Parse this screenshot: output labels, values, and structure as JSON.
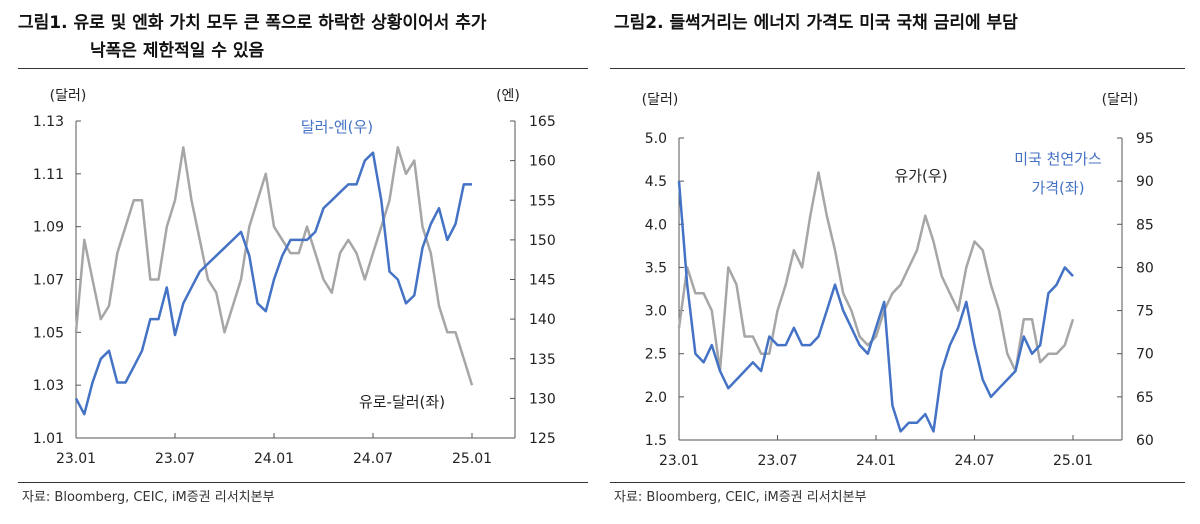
{
  "figure1": {
    "title_line1": "그림1.  유로 및 엔화 가치 모두 큰 폭으로 하락한 상황이어서 추가",
    "title_line2": "낙폭은 제한적일 수 있음",
    "source": "자료: Bloomberg, CEIC, iM증권 리서치본부"
  },
  "figure2": {
    "title": "그림2.  들썩거리는 에너지 가격도 미국 국채 금리에 부담",
    "source": "자료: Bloomberg, CEIC, iM증권 리서치본부"
  },
  "chart_data": [
    {
      "type": "line",
      "x_ticks": [
        "23.01",
        "23.07",
        "24.01",
        "24.07",
        "25.01"
      ],
      "x_range": [
        "23.01",
        "25.03"
      ],
      "y_left": {
        "unit": "(달러)",
        "range": [
          1.01,
          1.13
        ],
        "ticks": [
          "1.01",
          "1.03",
          "1.05",
          "1.07",
          "1.09",
          "1.11",
          "1.13"
        ]
      },
      "y_right": {
        "unit": "(엔)",
        "range": [
          125,
          165
        ],
        "ticks": [
          "125",
          "130",
          "135",
          "140",
          "145",
          "150",
          "155",
          "160",
          "165"
        ]
      },
      "series": [
        {
          "name": "유로-달러(좌)",
          "axis": "left",
          "color": "#a6a6a6",
          "values": [
            1.05,
            1.085,
            1.07,
            1.055,
            1.06,
            1.08,
            1.09,
            1.1,
            1.1,
            1.07,
            1.07,
            1.09,
            1.1,
            1.12,
            1.1,
            1.085,
            1.07,
            1.065,
            1.05,
            1.06,
            1.07,
            1.09,
            1.1,
            1.11,
            1.09,
            1.085,
            1.08,
            1.08,
            1.09,
            1.08,
            1.07,
            1.065,
            1.08,
            1.085,
            1.08,
            1.07,
            1.08,
            1.09,
            1.1,
            1.12,
            1.11,
            1.115,
            1.09,
            1.08,
            1.06,
            1.05,
            1.05,
            1.04,
            1.03
          ]
        },
        {
          "name": "달러-엔(우)",
          "axis": "right",
          "color": "#4472c4",
          "values": [
            130,
            128,
            132,
            135,
            136,
            132,
            132,
            134,
            136,
            140,
            140,
            144,
            138,
            142,
            144,
            146,
            147,
            148,
            149,
            150,
            151,
            148,
            142,
            141,
            145,
            148,
            150,
            150,
            150,
            151,
            154,
            155,
            156,
            157,
            157,
            160,
            161,
            155,
            146,
            145,
            142,
            143,
            149,
            152,
            154,
            150,
            152,
            157,
            157
          ]
        }
      ],
      "period": "semi-monthly, 23.01 to 25.01"
    },
    {
      "type": "line",
      "x_ticks": [
        "23.01",
        "23.07",
        "24.01",
        "24.07",
        "25.01"
      ],
      "x_range": [
        "23.01",
        "25.03"
      ],
      "y_left": {
        "unit": "(달러)",
        "range": [
          1.5,
          5.0
        ],
        "ticks": [
          "1.5",
          "2.0",
          "2.5",
          "3.0",
          "3.5",
          "4.0",
          "4.5",
          "5.0"
        ]
      },
      "y_right": {
        "unit": "(달러)",
        "range": [
          60,
          95
        ],
        "ticks": [
          "60",
          "65",
          "70",
          "75",
          "80",
          "85",
          "90",
          "95"
        ]
      },
      "series": [
        {
          "name": "유가(우)",
          "axis": "right",
          "color": "#a6a6a6",
          "values": [
            73,
            80,
            77,
            77,
            75,
            68,
            80,
            78,
            72,
            72,
            70,
            70,
            75,
            78,
            82,
            80,
            86,
            91,
            86,
            82,
            77,
            75,
            72,
            71,
            72,
            75,
            77,
            78,
            80,
            82,
            86,
            83,
            79,
            77,
            75,
            80,
            83,
            82,
            78,
            75,
            70,
            68,
            74,
            74,
            69,
            70,
            70,
            71,
            74
          ]
        },
        {
          "name": "미국 천연가스 가격(좌)",
          "name_line1": "미국 천연가스",
          "name_line2": "가격(좌)",
          "axis": "left",
          "color": "#4472c4",
          "values": [
            4.5,
            3.3,
            2.5,
            2.4,
            2.6,
            2.3,
            2.1,
            2.2,
            2.3,
            2.4,
            2.3,
            2.7,
            2.6,
            2.6,
            2.8,
            2.6,
            2.6,
            2.7,
            3.0,
            3.3,
            3.0,
            2.8,
            2.6,
            2.5,
            2.8,
            3.1,
            1.9,
            1.6,
            1.7,
            1.7,
            1.8,
            1.6,
            2.3,
            2.6,
            2.8,
            3.1,
            2.6,
            2.2,
            2.0,
            2.1,
            2.2,
            2.3,
            2.7,
            2.5,
            2.6,
            3.2,
            3.3,
            3.5,
            3.4
          ]
        }
      ],
      "period": "semi-monthly, 23.01 to 25.01"
    }
  ]
}
